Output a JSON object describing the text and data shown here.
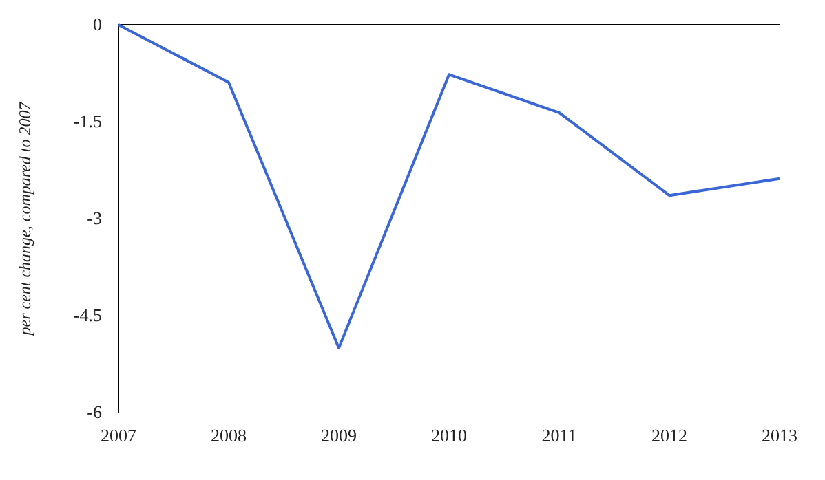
{
  "chart_data": {
    "type": "line",
    "ylabel": "per cent change, compared to 2007",
    "categories": [
      "2007",
      "2008",
      "2009",
      "2010",
      "2011",
      "2012",
      "2013"
    ],
    "series": [
      {
        "color": "#3a66d6",
        "values": [
          0,
          -0.89,
          -5.0,
          -0.77,
          -1.36,
          -2.64,
          -2.38
        ]
      }
    ],
    "ylim": [
      -6,
      0
    ],
    "yticks": [
      {
        "value": -6,
        "label": "-6"
      },
      {
        "value": -4.5,
        "label": "-4.5"
      },
      {
        "value": -3,
        "label": "-3"
      },
      {
        "value": -1.5,
        "label": "-1.5"
      },
      {
        "value": 0,
        "label": "0"
      }
    ],
    "ref_lines": [
      {
        "axis": "y",
        "value": 0,
        "color": "#000000"
      }
    ],
    "grid": false,
    "marker": "none",
    "line_style": "solid"
  }
}
